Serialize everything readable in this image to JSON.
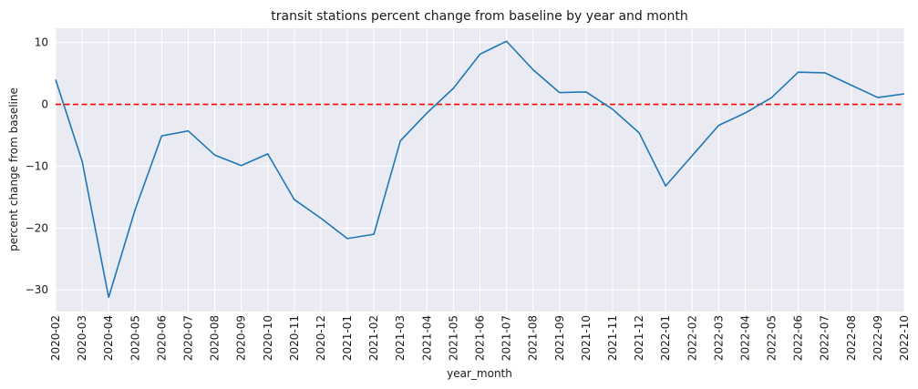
{
  "chart_data": {
    "type": "line",
    "title": "transit stations percent change from baseline by year and month",
    "xlabel": "year_month",
    "ylabel": "percent change from baseline",
    "ylim": [
      -33.5,
      12.3
    ],
    "yticks": [
      10,
      0,
      -10,
      -20,
      -30
    ],
    "ytick_labels": [
      "10",
      "0",
      "−10",
      "−20",
      "−30"
    ],
    "grid": true,
    "reference_line": {
      "y": 0,
      "color": "#ff0000",
      "style": "dashed"
    },
    "categories": [
      "2020-02",
      "2020-03",
      "2020-04",
      "2020-05",
      "2020-06",
      "2020-07",
      "2020-08",
      "2020-09",
      "2020-10",
      "2020-11",
      "2020-12",
      "2021-01",
      "2021-02",
      "2021-03",
      "2021-04",
      "2021-05",
      "2021-06",
      "2021-07",
      "2021-08",
      "2021-09",
      "2021-10",
      "2021-11",
      "2021-12",
      "2022-01",
      "2022-02",
      "2022-03",
      "2022-04",
      "2022-05",
      "2022-06",
      "2022-07",
      "2022-08",
      "2022-09",
      "2022-10"
    ],
    "series": [
      {
        "name": "transit stations",
        "color": "#1f77b4",
        "values": [
          4.0,
          -9.2,
          -31.2,
          -17.0,
          -5.1,
          -4.3,
          -8.2,
          -9.9,
          -8.0,
          -15.4,
          -18.4,
          -21.7,
          -21.0,
          -5.9,
          -1.4,
          2.6,
          8.1,
          10.2,
          5.6,
          1.9,
          2.0,
          -0.8,
          -4.6,
          -13.2,
          -8.3,
          -3.4,
          -1.4,
          1.1,
          5.2,
          5.1,
          3.1,
          1.1,
          1.7
        ]
      }
    ]
  }
}
